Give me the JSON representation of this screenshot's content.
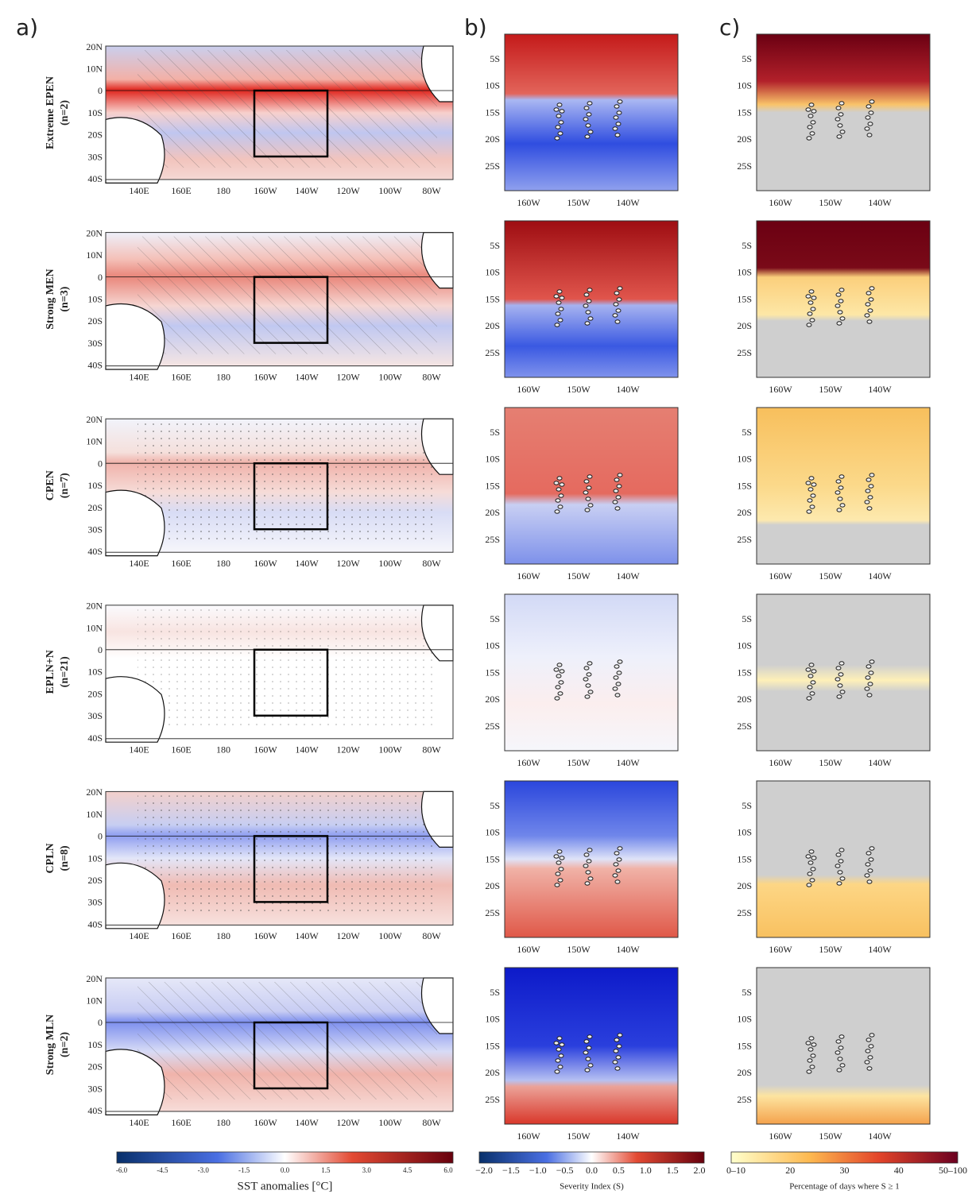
{
  "panels": [
    "a)",
    "b)",
    "c)"
  ],
  "rows": [
    {
      "name": "Extreme EPEN",
      "n": "(n=2)"
    },
    {
      "name": "Strong MEN",
      "n": "(n=3)"
    },
    {
      "name": "CPEN",
      "n": "(n=7)"
    },
    {
      "name": "EPLN+N",
      "n": "(n=21)"
    },
    {
      "name": "CPLN",
      "n": "(n=8)"
    },
    {
      "name": "Strong MLN",
      "n": "(n=2)"
    }
  ],
  "map_a": {
    "lat_labels": [
      "20N",
      "10N",
      "0",
      "10S",
      "20S",
      "30S",
      "40S"
    ],
    "lon_labels": [
      "140E",
      "160E",
      "180",
      "160W",
      "140W",
      "120W",
      "100W",
      "80W"
    ]
  },
  "map_bc": {
    "lat_labels": [
      "5S",
      "10S",
      "15S",
      "20S",
      "25S"
    ],
    "lon_labels": [
      "160W",
      "150W",
      "140W"
    ]
  },
  "colorbars": [
    {
      "title": "SST anomalies [°C]",
      "ticks": [
        "-6.0",
        "-4.5",
        "-3.0",
        "-1.5",
        "0.0",
        "1.5",
        "3.0",
        "4.5",
        "6.0"
      ]
    },
    {
      "title": "Severity Index (S)",
      "ticks": [
        "−2.0",
        "−1.5",
        "−1.0",
        "−0.5",
        "0.0",
        "0.5",
        "1.0",
        "1.5",
        "2.0"
      ]
    },
    {
      "title": "Percentage of days where S ≥ 1",
      "ticks": [
        "0–10",
        "20",
        "30",
        "40",
        "50–100"
      ]
    }
  ]
}
